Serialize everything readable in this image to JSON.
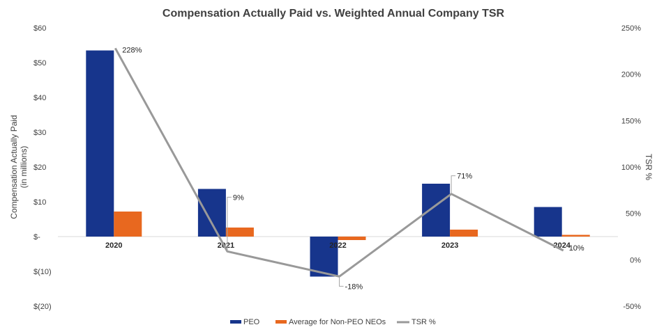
{
  "chart_data": {
    "type": "bar",
    "title": "Compensation Actually Paid vs. Weighted Annual Company TSR",
    "categories": [
      "2020",
      "2021",
      "2022",
      "2023",
      "2024"
    ],
    "series": [
      {
        "name": "PEO",
        "type": "bar",
        "axis": "left",
        "color": "#17358C",
        "values": [
          53.5,
          13.7,
          -11.5,
          15.2,
          8.5
        ]
      },
      {
        "name": "Average for Non-PEO NEOs",
        "type": "bar",
        "axis": "left",
        "color": "#E8681F",
        "values": [
          7.2,
          2.6,
          -1.0,
          2.0,
          0.5
        ]
      },
      {
        "name": "TSR %",
        "type": "line",
        "axis": "right",
        "color": "#999999",
        "values": [
          228,
          9,
          -18,
          71,
          10
        ],
        "labels": [
          "228%",
          "9%",
          "-18%",
          "71%",
          "10%"
        ]
      }
    ],
    "ylabel": "Compensation Actually Paid\n(in millions)",
    "ylabel_lines": [
      "Compensation Actually Paid",
      "(in millions)"
    ],
    "y2label": "TSR %",
    "ylim": [
      -20,
      60
    ],
    "y2lim": [
      -50,
      250
    ],
    "yticks": [
      "$60",
      "$50",
      "$40",
      "$30",
      "$20",
      "$10",
      "$-",
      "$(10)",
      "$(20)"
    ],
    "y2ticks": [
      "250%",
      "200%",
      "150%",
      "100%",
      "50%",
      "0%",
      "-50%"
    ],
    "grid": false,
    "legend": "bottom"
  }
}
